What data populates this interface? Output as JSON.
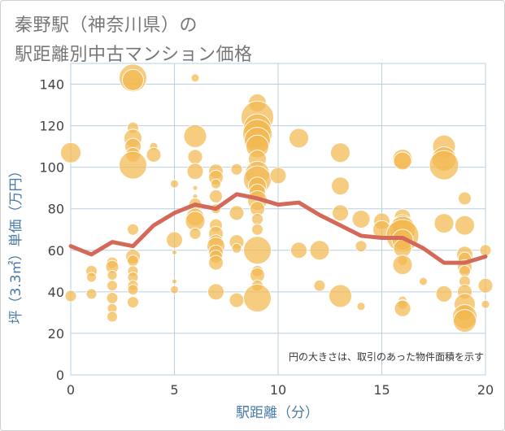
{
  "title": {
    "line1": "秦野駅（神奈川県）の",
    "line2": "駅距離別中古マンション価格"
  },
  "chart_data": {
    "type": "scatter",
    "xlabel": "駅距離（分）",
    "ylabel": "坪（3.3㎡）単価（万円）",
    "xlim": [
      0,
      20
    ],
    "ylim": [
      0,
      150
    ],
    "x_ticks": [
      "0",
      "5",
      "10",
      "15",
      "20"
    ],
    "y_ticks": [
      "0",
      "20",
      "40",
      "60",
      "80",
      "100",
      "120",
      "140"
    ],
    "grid": true,
    "annotation": "円の大きさは、取引のあった物件面積を示す",
    "colors": {
      "bubble": "#f2b950",
      "trend": "#d4695a",
      "grid": "#b8cfe0",
      "axis_text": "#4a7aa6"
    },
    "trend": {
      "x": [
        0,
        1,
        2,
        3,
        4,
        5,
        6,
        7,
        8,
        9,
        10,
        11,
        12,
        13,
        14,
        15,
        16,
        17,
        18,
        19,
        20
      ],
      "y": [
        62,
        58,
        64,
        62,
        72,
        78,
        82,
        80,
        87,
        85,
        82,
        83,
        77,
        72,
        67,
        66,
        66,
        61,
        54,
        54,
        57
      ]
    },
    "points": [
      {
        "x": 0,
        "y": 107,
        "size": 25
      },
      {
        "x": 0,
        "y": 38,
        "size": 14
      },
      {
        "x": 1,
        "y": 50,
        "size": 14
      },
      {
        "x": 1,
        "y": 47,
        "size": 12
      },
      {
        "x": 1,
        "y": 39,
        "size": 13
      },
      {
        "x": 2,
        "y": 54,
        "size": 14
      },
      {
        "x": 2,
        "y": 52,
        "size": 16
      },
      {
        "x": 2,
        "y": 48,
        "size": 12
      },
      {
        "x": 2,
        "y": 43,
        "size": 13
      },
      {
        "x": 2,
        "y": 37,
        "size": 14
      },
      {
        "x": 2,
        "y": 32,
        "size": 12
      },
      {
        "x": 2,
        "y": 28,
        "size": 13
      },
      {
        "x": 3,
        "y": 143,
        "size": 34
      },
      {
        "x": 3,
        "y": 142,
        "size": 26
      },
      {
        "x": 3,
        "y": 119,
        "size": 14
      },
      {
        "x": 3,
        "y": 114,
        "size": 22
      },
      {
        "x": 3,
        "y": 110,
        "size": 20
      },
      {
        "x": 3,
        "y": 106,
        "size": 18
      },
      {
        "x": 3,
        "y": 101,
        "size": 34
      },
      {
        "x": 3,
        "y": 70,
        "size": 14
      },
      {
        "x": 3,
        "y": 57,
        "size": 18
      },
      {
        "x": 3,
        "y": 55,
        "size": 14
      },
      {
        "x": 3,
        "y": 50,
        "size": 13
      },
      {
        "x": 3,
        "y": 47,
        "size": 13
      },
      {
        "x": 3,
        "y": 43,
        "size": 13
      },
      {
        "x": 3,
        "y": 41,
        "size": 13
      },
      {
        "x": 3,
        "y": 35,
        "size": 14
      },
      {
        "x": 4,
        "y": 110,
        "size": 10
      },
      {
        "x": 4,
        "y": 106,
        "size": 18
      },
      {
        "x": 5,
        "y": 92,
        "size": 10
      },
      {
        "x": 5,
        "y": 65,
        "size": 20
      },
      {
        "x": 5,
        "y": 59,
        "size": 6
      },
      {
        "x": 5,
        "y": 45,
        "size": 6
      },
      {
        "x": 5,
        "y": 41,
        "size": 10
      },
      {
        "x": 6,
        "y": 143,
        "size": 10
      },
      {
        "x": 6,
        "y": 115,
        "size": 28
      },
      {
        "x": 6,
        "y": 105,
        "size": 18
      },
      {
        "x": 6,
        "y": 98,
        "size": 20
      },
      {
        "x": 6,
        "y": 90,
        "size": 6
      },
      {
        "x": 6,
        "y": 86,
        "size": 6
      },
      {
        "x": 6,
        "y": 82,
        "size": 16
      },
      {
        "x": 6,
        "y": 76,
        "size": 22
      },
      {
        "x": 6,
        "y": 74,
        "size": 24
      },
      {
        "x": 6,
        "y": 68,
        "size": 14
      },
      {
        "x": 7,
        "y": 98,
        "size": 18
      },
      {
        "x": 7,
        "y": 95,
        "size": 18
      },
      {
        "x": 7,
        "y": 92,
        "size": 12
      },
      {
        "x": 7,
        "y": 86,
        "size": 16
      },
      {
        "x": 7,
        "y": 80,
        "size": 12
      },
      {
        "x": 7,
        "y": 72,
        "size": 16
      },
      {
        "x": 7,
        "y": 68,
        "size": 18
      },
      {
        "x": 7,
        "y": 64,
        "size": 18
      },
      {
        "x": 7,
        "y": 62,
        "size": 22
      },
      {
        "x": 7,
        "y": 59,
        "size": 18
      },
      {
        "x": 7,
        "y": 57,
        "size": 16
      },
      {
        "x": 7,
        "y": 54,
        "size": 18
      },
      {
        "x": 7,
        "y": 40,
        "size": 20
      },
      {
        "x": 8,
        "y": 99,
        "size": 14
      },
      {
        "x": 8,
        "y": 78,
        "size": 18
      },
      {
        "x": 8,
        "y": 64,
        "size": 18
      },
      {
        "x": 8,
        "y": 61,
        "size": 12
      },
      {
        "x": 8,
        "y": 36,
        "size": 18
      },
      {
        "x": 9,
        "y": 131,
        "size": 22
      },
      {
        "x": 9,
        "y": 124,
        "size": 40
      },
      {
        "x": 9,
        "y": 119,
        "size": 34
      },
      {
        "x": 9,
        "y": 116,
        "size": 36
      },
      {
        "x": 9,
        "y": 113,
        "size": 32
      },
      {
        "x": 9,
        "y": 110,
        "size": 28
      },
      {
        "x": 9,
        "y": 104,
        "size": 22
      },
      {
        "x": 9,
        "y": 97,
        "size": 30
      },
      {
        "x": 9,
        "y": 94,
        "size": 34
      },
      {
        "x": 9,
        "y": 91,
        "size": 22
      },
      {
        "x": 9,
        "y": 88,
        "size": 20
      },
      {
        "x": 9,
        "y": 84,
        "size": 24
      },
      {
        "x": 9,
        "y": 80,
        "size": 18
      },
      {
        "x": 9,
        "y": 75,
        "size": 14
      },
      {
        "x": 9,
        "y": 70,
        "size": 14
      },
      {
        "x": 9,
        "y": 60,
        "size": 34
      },
      {
        "x": 9,
        "y": 50,
        "size": 14
      },
      {
        "x": 9,
        "y": 48,
        "size": 18
      },
      {
        "x": 9,
        "y": 43,
        "size": 14
      },
      {
        "x": 9,
        "y": 37,
        "size": 34
      },
      {
        "x": 10,
        "y": 96,
        "size": 20
      },
      {
        "x": 11,
        "y": 114,
        "size": 24
      },
      {
        "x": 11,
        "y": 60,
        "size": 20
      },
      {
        "x": 12,
        "y": 60,
        "size": 24
      },
      {
        "x": 12,
        "y": 43,
        "size": 14
      },
      {
        "x": 13,
        "y": 107,
        "size": 24
      },
      {
        "x": 13,
        "y": 91,
        "size": 22
      },
      {
        "x": 13,
        "y": 78,
        "size": 20
      },
      {
        "x": 13,
        "y": 38,
        "size": 28
      },
      {
        "x": 14,
        "y": 75,
        "size": 22
      },
      {
        "x": 14,
        "y": 62,
        "size": 14
      },
      {
        "x": 14,
        "y": 33,
        "size": 10
      },
      {
        "x": 15,
        "y": 74,
        "size": 20
      },
      {
        "x": 15,
        "y": 70,
        "size": 22
      },
      {
        "x": 16,
        "y": 104,
        "size": 24
      },
      {
        "x": 16,
        "y": 103,
        "size": 22
      },
      {
        "x": 16,
        "y": 76,
        "size": 20
      },
      {
        "x": 16,
        "y": 72,
        "size": 26
      },
      {
        "x": 16,
        "y": 70,
        "size": 32
      },
      {
        "x": 16,
        "y": 67,
        "size": 40
      },
      {
        "x": 16,
        "y": 65,
        "size": 26
      },
      {
        "x": 16,
        "y": 61,
        "size": 22
      },
      {
        "x": 16,
        "y": 55,
        "size": 12
      },
      {
        "x": 16,
        "y": 53,
        "size": 24
      },
      {
        "x": 16,
        "y": 36,
        "size": 10
      },
      {
        "x": 16,
        "y": 34,
        "size": 12
      },
      {
        "x": 16,
        "y": 32,
        "size": 20
      },
      {
        "x": 17,
        "y": 45,
        "size": 10
      },
      {
        "x": 18,
        "y": 110,
        "size": 28
      },
      {
        "x": 18,
        "y": 104,
        "size": 30
      },
      {
        "x": 18,
        "y": 101,
        "size": 36
      },
      {
        "x": 18,
        "y": 73,
        "size": 24
      },
      {
        "x": 18,
        "y": 39,
        "size": 20
      },
      {
        "x": 19,
        "y": 85,
        "size": 16
      },
      {
        "x": 19,
        "y": 72,
        "size": 24
      },
      {
        "x": 19,
        "y": 58,
        "size": 20
      },
      {
        "x": 19,
        "y": 56,
        "size": 16
      },
      {
        "x": 19,
        "y": 52,
        "size": 18
      },
      {
        "x": 19,
        "y": 50,
        "size": 14
      },
      {
        "x": 19,
        "y": 45,
        "size": 14
      },
      {
        "x": 19,
        "y": 40,
        "size": 18
      },
      {
        "x": 19,
        "y": 34,
        "size": 26
      },
      {
        "x": 19,
        "y": 30,
        "size": 20
      },
      {
        "x": 19,
        "y": 28,
        "size": 30
      },
      {
        "x": 19,
        "y": 26,
        "size": 28
      },
      {
        "x": 20,
        "y": 60,
        "size": 14
      },
      {
        "x": 20,
        "y": 43,
        "size": 18
      },
      {
        "x": 20,
        "y": 34,
        "size": 10
      }
    ]
  }
}
